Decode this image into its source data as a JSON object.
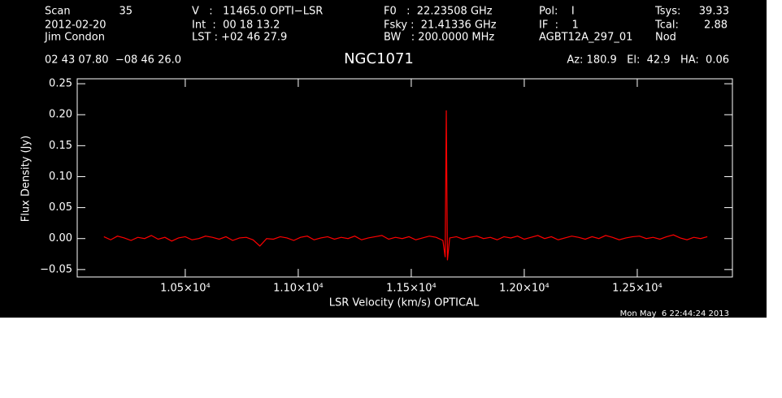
{
  "chart_data": {
    "type": "line",
    "title": "NGC1071",
    "header": {
      "scan_label": "Scan",
      "scan": "35",
      "date": "2012-02-20",
      "observer": "Jim Condon",
      "position": "02 43 07.80  −08 46 26.0",
      "velocity": "V   :   11465.0 OPTI−LSR",
      "int": "Int  :  00 18 13.2",
      "lst": "LST : +02 46 27.9",
      "f0": "F0   :  22.23508 GHz",
      "fsky": "Fsky :  21.41336 GHz",
      "bw": "BW   : 200.0000 MHz",
      "pol": "Pol:    I",
      "if": "IF  :    1",
      "project": "AGBT12A_297_01",
      "tsys_label": "Tsys:",
      "tsys": "39.33",
      "tcal_label": "Tcal:",
      "tcal": "2.88",
      "mode": "Nod",
      "pointing": "Az: 180.9   El:  42.9   HA:  0.06"
    },
    "timestamp": "Mon May  6 22:44:24 2013",
    "x_label": "LSR Velocity (km/s) OPTICAL",
    "y_label": "Flux Density (Jy)",
    "xlim": [
      10022,
      12921
    ],
    "ylim": [
      -0.062,
      0.258
    ],
    "xticks": [
      {
        "value": 10500,
        "label": "1.05×10⁴"
      },
      {
        "value": 11000,
        "label": "1.10×10⁴"
      },
      {
        "value": 11500,
        "label": "1.15×10⁴"
      },
      {
        "value": 12000,
        "label": "1.20×10⁴"
      },
      {
        "value": 12500,
        "label": "1.25×10⁴"
      }
    ],
    "yticks": [
      {
        "value": -0.05,
        "label": "−0.05"
      },
      {
        "value": 0,
        "label": "0.00"
      },
      {
        "value": 0.05,
        "label": "0.05"
      },
      {
        "value": 0.1,
        "label": "0.10"
      },
      {
        "value": 0.15,
        "label": "0.15"
      },
      {
        "value": 0.2,
        "label": "0.20"
      },
      {
        "value": 0.25,
        "label": "0.25"
      }
    ],
    "x": [
      10140,
      10170,
      10200,
      10230,
      10260,
      10290,
      10320,
      10350,
      10380,
      10410,
      10440,
      10470,
      10500,
      10530,
      10560,
      10590,
      10620,
      10650,
      10680,
      10710,
      10740,
      10770,
      10800,
      10830,
      10860,
      10890,
      10920,
      10950,
      10980,
      11010,
      11040,
      11070,
      11100,
      11130,
      11160,
      11190,
      11220,
      11250,
      11280,
      11310,
      11340,
      11370,
      11400,
      11430,
      11460,
      11490,
      11520,
      11550,
      11580,
      11610,
      11640,
      11650,
      11655,
      11660,
      11670,
      11700,
      11730,
      11760,
      11790,
      11820,
      11850,
      11880,
      11910,
      11940,
      11970,
      12000,
      12030,
      12060,
      12090,
      12120,
      12150,
      12180,
      12210,
      12240,
      12270,
      12300,
      12330,
      12360,
      12390,
      12420,
      12450,
      12480,
      12510,
      12540,
      12570,
      12600,
      12630,
      12660,
      12690,
      12720,
      12750,
      12780,
      12810
    ],
    "series": [
      {
        "name": "NGC1071",
        "color": "#ff0000",
        "values": [
          0.003,
          -0.002,
          0.004,
          0.001,
          -0.003,
          0.002,
          0.0,
          0.005,
          -0.001,
          0.002,
          -0.004,
          0.001,
          0.003,
          -0.002,
          0.0,
          0.004,
          0.002,
          -0.001,
          0.003,
          -0.003,
          0.001,
          0.002,
          -0.002,
          -0.012,
          0.0,
          -0.001,
          0.003,
          0.001,
          -0.003,
          0.002,
          0.004,
          -0.002,
          0.001,
          0.003,
          -0.001,
          0.002,
          0.0,
          0.004,
          -0.002,
          0.001,
          0.003,
          0.005,
          -0.001,
          0.002,
          0.0,
          0.003,
          -0.002,
          0.001,
          0.004,
          0.002,
          -0.003,
          -0.03,
          0.207,
          -0.035,
          0.001,
          0.003,
          -0.001,
          0.002,
          0.004,
          0.0,
          0.002,
          -0.002,
          0.003,
          0.001,
          0.004,
          -0.001,
          0.002,
          0.005,
          0.0,
          0.003,
          -0.002,
          0.001,
          0.004,
          0.002,
          -0.001,
          0.003,
          0.0,
          0.005,
          0.002,
          -0.002,
          0.001,
          0.003,
          0.004,
          0.0,
          0.002,
          -0.001,
          0.003,
          0.006,
          0.001,
          -0.002,
          0.002,
          0.0,
          0.003
        ]
      }
    ]
  }
}
